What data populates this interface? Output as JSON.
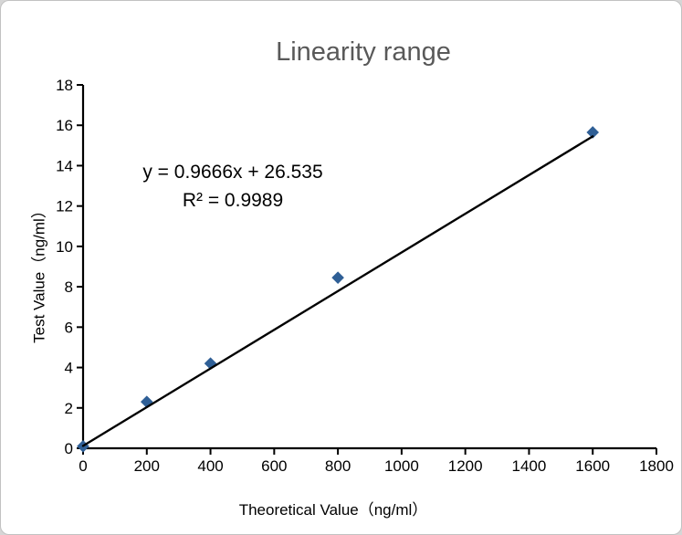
{
  "chart_data": {
    "type": "scatter",
    "title": "Linearity range",
    "xlabel": "Theoretical Value（ng/ml）",
    "ylabel": "Test Value（ng/ml）",
    "points": [
      {
        "x": 0,
        "y": 0.1
      },
      {
        "x": 200,
        "y": 2.3
      },
      {
        "x": 400,
        "y": 4.2
      },
      {
        "x": 800,
        "y": 8.45
      },
      {
        "x": 1600,
        "y": 15.65
      }
    ],
    "trendline": {
      "from": {
        "x": 0,
        "y": 0.12
      },
      "to": {
        "x": 1600,
        "y": 15.45
      }
    },
    "annotation": {
      "equation": "y = 0.9666x + 26.535",
      "r_squared": "R² = 0.9989"
    },
    "xlim": [
      0,
      1800
    ],
    "ylim": [
      0,
      18
    ],
    "xticks": [
      0,
      200,
      400,
      600,
      800,
      1000,
      1200,
      1400,
      1600,
      1800
    ],
    "yticks": [
      0,
      2,
      4,
      6,
      8,
      10,
      12,
      14,
      16,
      18
    ],
    "grid": false,
    "legend": null,
    "marker_shape": "diamond",
    "colors": {
      "marker": "#2F5F96",
      "trendline": "#000000",
      "axis": "#000000",
      "title": "#595959",
      "tick_text": "#000000"
    }
  }
}
